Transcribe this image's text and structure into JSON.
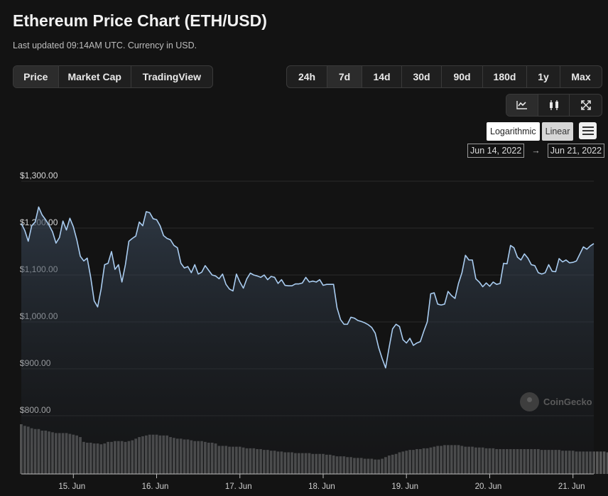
{
  "page": {
    "title": "Ethereum Price Chart (ETH/USD)",
    "subtitle": "Last updated 09:14AM UTC. Currency in USD."
  },
  "tabs": [
    "Price",
    "Market Cap",
    "TradingView"
  ],
  "active_tab": "Price",
  "ranges": [
    "24h",
    "7d",
    "14d",
    "30d",
    "90d",
    "180d",
    "1y",
    "Max"
  ],
  "active_range": "7d",
  "chart_types": [
    "line-chart-icon",
    "candlestick-icon",
    "fullscreen-icon"
  ],
  "scale": {
    "log_label": "Logarithmic",
    "linear_label": "Linear",
    "active": "Linear"
  },
  "date_range": {
    "from": "Jun 14, 2022",
    "separator": "→",
    "to": "Jun 21, 2022"
  },
  "watermark": "CoinGecko",
  "colors": {
    "line": "#a9ccf0",
    "background": "#131313",
    "volume": "#585858",
    "grid": "#2b2b2b"
  },
  "chart_data": {
    "type": "area",
    "series": [
      {
        "x_start": "2022-06-14T09:00",
        "step_hours": 1,
        "values": [
          1210,
          1195,
          1172,
          1205,
          1213,
          1245,
          1228,
          1218,
          1206,
          1192,
          1168,
          1180,
          1215,
          1196,
          1221,
          1203,
          1175,
          1140,
          1130,
          1136,
          1095,
          1045,
          1032,
          1070,
          1122,
          1125,
          1150,
          1112,
          1122,
          1085,
          1122,
          1172,
          1178,
          1183,
          1213,
          1205,
          1235,
          1233,
          1220,
          1218,
          1205,
          1184,
          1178,
          1175,
          1163,
          1158,
          1125,
          1115,
          1118,
          1105,
          1122,
          1102,
          1106,
          1120,
          1110,
          1100,
          1098,
          1092,
          1102,
          1080,
          1070,
          1066,
          1102,
          1085,
          1072,
          1092,
          1104,
          1100,
          1098,
          1095,
          1100,
          1090,
          1097,
          1095,
          1082,
          1090,
          1078,
          1077,
          1077,
          1081,
          1081,
          1083,
          1095,
          1085,
          1087,
          1085,
          1090,
          1078,
          1080,
          1080,
          1080,
          1030,
          1005,
          995,
          995,
          1010,
          1008,
          1003,
          1001,
          998,
          994,
          988,
          976,
          945,
          922,
          902,
          945,
          985,
          995,
          990,
          962,
          955,
          965,
          950,
          955,
          958,
          980,
          1000,
          1060,
          1062,
          1038,
          1036,
          1038,
          1065,
          1056,
          1050,
          1082,
          1105,
          1142,
          1132,
          1132,
          1092,
          1085,
          1075,
          1083,
          1076,
          1085,
          1080,
          1082,
          1125,
          1124,
          1163,
          1158,
          1138,
          1132,
          1145,
          1136,
          1122,
          1120,
          1105,
          1102,
          1105,
          1122,
          1108,
          1107,
          1135,
          1128,
          1132,
          1126,
          1127,
          1130,
          1145,
          1160,
          1155,
          1162,
          1167
        ]
      }
    ],
    "volume": [
      62,
      60,
      59,
      57,
      56,
      56,
      54,
      54,
      53,
      52,
      51,
      51,
      51,
      51,
      50,
      49,
      48,
      46,
      40,
      39,
      39,
      38,
      38,
      37,
      38,
      40,
      40,
      41,
      41,
      41,
      40,
      41,
      42,
      44,
      46,
      47,
      48,
      49,
      49,
      49,
      48,
      48,
      48,
      46,
      45,
      44,
      44,
      43,
      43,
      42,
      41,
      41,
      41,
      40,
      39,
      39,
      38,
      35,
      35,
      35,
      34,
      34,
      34,
      34,
      33,
      32,
      32,
      32,
      31,
      31,
      30,
      30,
      29,
      29,
      28,
      28,
      27,
      27,
      27,
      26,
      26,
      26,
      26,
      26,
      25,
      25,
      25,
      25,
      24,
      24,
      23,
      22,
      22,
      22,
      21,
      21,
      20,
      20,
      20,
      19,
      19,
      19,
      18,
      18,
      19,
      21,
      23,
      24,
      25,
      27,
      28,
      29,
      30,
      30,
      31,
      31,
      32,
      32,
      33,
      34,
      35,
      35,
      36,
      36,
      36,
      36,
      36,
      35,
      34,
      34,
      34,
      33,
      33,
      33,
      32,
      32,
      32,
      31,
      31,
      31,
      31,
      31,
      31,
      31,
      31,
      31,
      31,
      31,
      31,
      31,
      30,
      30,
      30,
      30,
      30,
      30,
      29,
      29,
      29,
      29,
      28,
      28,
      28,
      28,
      28,
      28,
      28,
      28,
      28,
      27
    ],
    "y_ticks": [
      "$1,300.00",
      "$1,200.00",
      "$1,100.00",
      "$1,000.00",
      "$900.00",
      "$800.00"
    ],
    "ylim": [
      800,
      1300
    ],
    "x_ticks": [
      "15. Jun",
      "16. Jun",
      "17. Jun",
      "18. Jun",
      "19. Jun",
      "20. Jun",
      "21. Jun"
    ],
    "grid": true,
    "legend": "none"
  }
}
